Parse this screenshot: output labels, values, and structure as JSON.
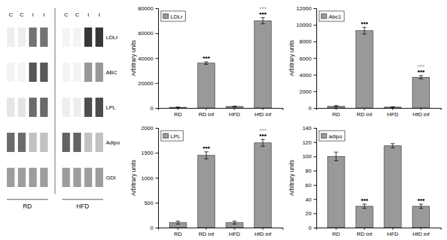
{
  "chart_data": [
    {
      "type": "bar",
      "ylabel": "Arbitrary units",
      "categories": [
        "RD",
        "RD inf",
        "HFD",
        "HfD inf"
      ],
      "series": [
        {
          "name": "LDLr",
          "color": "#999999",
          "values": [
            500,
            36000,
            1200,
            70000
          ],
          "errors": [
            200,
            1000,
            300,
            2500
          ]
        }
      ],
      "ylim": [
        0,
        80000
      ],
      "yticks": [
        0,
        20000,
        40000,
        60000,
        80000
      ],
      "legend": "upper left",
      "annotations": [
        {
          "text": "***",
          "category": "RD inf",
          "color": "#000000"
        },
        {
          "text": "***",
          "category": "HfD inf",
          "color": "#bbbbbb"
        },
        {
          "text": "***",
          "category": "HfD inf",
          "color": "#000000"
        }
      ]
    },
    {
      "type": "bar",
      "ylabel": "Arbitrary units",
      "categories": [
        "RD",
        "RD inf",
        "HFD",
        "HfD inf"
      ],
      "series": [
        {
          "name": "Abc1",
          "color": "#999999",
          "values": [
            200,
            9300,
            100,
            3700
          ],
          "errors": [
            100,
            400,
            50,
            200
          ]
        }
      ],
      "ylim": [
        0,
        12000
      ],
      "yticks": [
        0,
        2000,
        4000,
        6000,
        8000,
        10000,
        12000
      ],
      "legend": "upper left",
      "annotations": [
        {
          "text": "***",
          "category": "RD inf",
          "color": "#000000"
        },
        {
          "text": "***",
          "category": "HfD inf",
          "color": "#bbbbbb"
        },
        {
          "text": "***",
          "category": "HfD inf",
          "color": "#000000"
        }
      ]
    },
    {
      "type": "bar",
      "ylabel": "Arbitrary units",
      "categories": [
        "RD",
        "RD inf",
        "HFD",
        "HfD inf"
      ],
      "series": [
        {
          "name": "LPL",
          "color": "#999999",
          "values": [
            100,
            1450,
            100,
            1700
          ],
          "errors": [
            30,
            70,
            30,
            70
          ]
        }
      ],
      "ylim": [
        0,
        2000
      ],
      "yticks": [
        0,
        500,
        1000,
        1500,
        2000
      ],
      "legend": "upper left",
      "annotations": [
        {
          "text": "***",
          "category": "RD inf",
          "color": "#000000"
        },
        {
          "text": "***",
          "category": "HfD inf",
          "color": "#bbbbbb"
        },
        {
          "text": "***",
          "category": "HfD inf",
          "color": "#000000"
        }
      ]
    },
    {
      "type": "bar",
      "ylabel": "Arbitrary units",
      "categories": [
        "RD",
        "RD inf",
        "HFD",
        "HfD inf"
      ],
      "series": [
        {
          "name": "adipo",
          "color": "#999999",
          "values": [
            100,
            30,
            115,
            30
          ],
          "errors": [
            6,
            3,
            3,
            3
          ]
        }
      ],
      "ylim": [
        0,
        140
      ],
      "yticks": [
        0,
        20,
        40,
        60,
        80,
        100,
        120,
        140
      ],
      "legend": "upper left",
      "annotations": [
        {
          "text": "***",
          "category": "RD inf",
          "color": "#000000"
        },
        {
          "text": "***",
          "category": "HfD inf",
          "color": "#000000"
        }
      ]
    },
    {
      "type": "heatmap",
      "categories": [
        "C",
        "C",
        "I",
        "I",
        "C",
        "C",
        "I",
        "I"
      ],
      "groups": [
        "RD",
        "RD",
        "RD",
        "RD",
        "HFD",
        "HFD",
        "HFD",
        "HFD"
      ],
      "rows": [
        "LDLr",
        "ABC",
        "LPL",
        "Adipo",
        "GDI"
      ],
      "cells": [
        [
          0.08,
          0.08,
          0.65,
          0.65,
          0.05,
          0.05,
          0.92,
          0.92
        ],
        [
          0.05,
          0.05,
          0.78,
          0.78,
          0.05,
          0.05,
          0.48,
          0.48
        ],
        [
          0.12,
          0.12,
          0.68,
          0.68,
          0.08,
          0.08,
          0.82,
          0.82
        ],
        [
          0.68,
          0.68,
          0.28,
          0.28,
          0.72,
          0.72,
          0.28,
          0.28
        ],
        [
          0.45,
          0.45,
          0.45,
          0.45,
          0.45,
          0.45,
          0.45,
          0.45
        ]
      ]
    }
  ]
}
